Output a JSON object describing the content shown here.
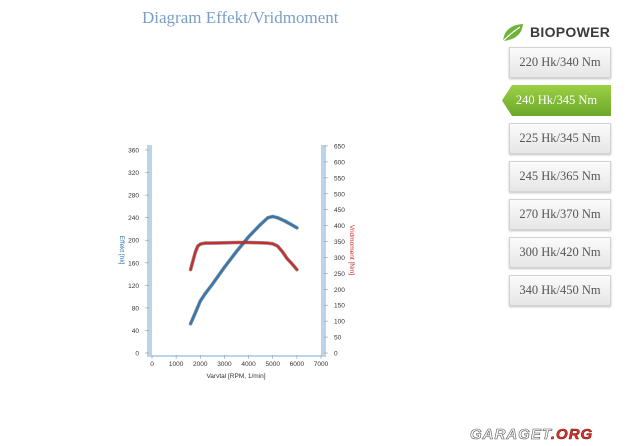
{
  "page_title": "Diagram Effekt/Vridmoment",
  "brand": {
    "name": "BIOPOWER",
    "leaf_icon": "leaf-icon",
    "leaf_color": "#6fb43a"
  },
  "sidebar": {
    "active_index": 1,
    "accent_color": "#7fbd34",
    "items": [
      {
        "label": "220 Hk/340 Nm"
      },
      {
        "label": "240 Hk/345 Nm"
      },
      {
        "label": "225 Hk/345 Nm"
      },
      {
        "label": "245 Hk/365 Nm"
      },
      {
        "label": "270 Hk/370 Nm"
      },
      {
        "label": "300 Hk/420 Nm"
      },
      {
        "label": "340 Hk/450 Nm"
      }
    ]
  },
  "chart_data": {
    "type": "line",
    "xlabel": "Varvtal [RPM, 1/min]",
    "ylabel_left": "Effekt [hk]",
    "ylabel_right": "Vridmoment [Nm]",
    "xlim": [
      0,
      7000
    ],
    "ylim_left": [
      0,
      360
    ],
    "ylim_right": [
      0,
      650
    ],
    "x_ticks": [
      0,
      1000,
      2000,
      3000,
      4000,
      5000,
      6000,
      7000
    ],
    "y_ticks_left": [
      0,
      40,
      80,
      120,
      160,
      200,
      240,
      280,
      320,
      360
    ],
    "y_ticks_right": [
      0,
      50,
      100,
      150,
      200,
      250,
      300,
      350,
      400,
      450,
      500,
      550,
      600,
      650
    ],
    "grid": false,
    "series": [
      {
        "axis": "left",
        "color": "#2f78b5",
        "x": [
          1600,
          1800,
          2000,
          2200,
          2500,
          3000,
          3500,
          4000,
          4500,
          4800,
          5000,
          5200,
          5500,
          5800,
          6000
        ],
        "y": [
          52,
          72,
          92,
          105,
          122,
          152,
          180,
          206,
          228,
          240,
          242,
          240,
          234,
          227,
          222
        ]
      },
      {
        "axis": "right",
        "color": "#cc2b2b",
        "x": [
          1600,
          1700,
          1800,
          1900,
          2000,
          2200,
          2500,
          3000,
          3500,
          4000,
          4500,
          4800,
          5000,
          5200,
          5400,
          5600,
          5800,
          6000
        ],
        "y": [
          262,
          290,
          318,
          336,
          342,
          345,
          345,
          346,
          347,
          347,
          346,
          345,
          343,
          336,
          318,
          296,
          280,
          262
        ]
      }
    ]
  },
  "watermark": {
    "brand": "GARAGET",
    "domain": ".ORG"
  }
}
